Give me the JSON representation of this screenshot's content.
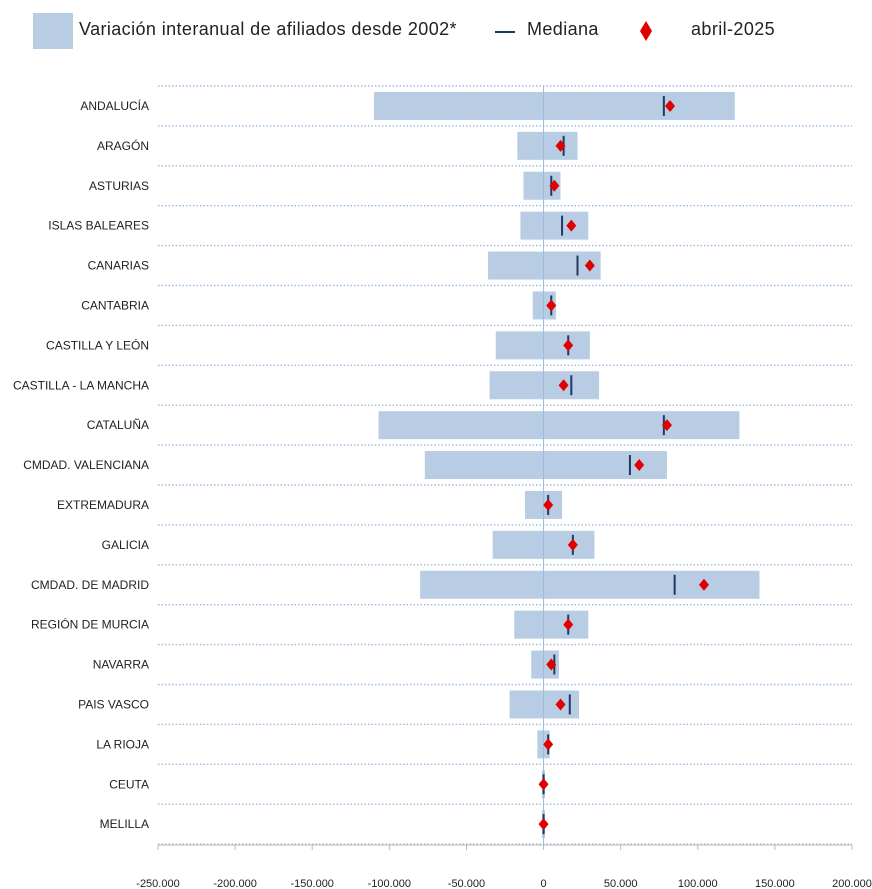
{
  "legend": {
    "range_label": "Variación interanual de afiliados desde 2002*",
    "median_label": "Mediana",
    "current_label": "abril-2025"
  },
  "colors": {
    "range_bar": "#b8cce4",
    "median": "#1f3864",
    "current": "#e00000",
    "gridline": "#9bbbe0",
    "zero_line": "#9bbbe0"
  },
  "chart_data": {
    "type": "bar",
    "orientation": "horizontal",
    "xlim": [
      -250000,
      200000
    ],
    "xticks": [
      -250000,
      -200000,
      -150000,
      -100000,
      -50000,
      0,
      50000,
      100000,
      150000,
      200000
    ],
    "xtick_labels": [
      "-250.000",
      "-200.000",
      "-150.000",
      "-100.000",
      "-50.000",
      "0",
      "50.000",
      "100.000",
      "150.000",
      "200.000"
    ],
    "categories": [
      "ANDALUCÍA",
      "ARAGÓN",
      "ASTURIAS",
      "ISLAS BALEARES",
      "CANARIAS",
      "CANTABRIA",
      "CASTILLA Y LEÓN",
      "CASTILLA - LA MANCHA",
      "CATALUÑA",
      "CMDAD. VALENCIANA",
      "EXTREMADURA",
      "GALICIA",
      "CMDAD. DE MADRID",
      "REGIÓN DE MURCIA",
      "NAVARRA",
      "PAIS VASCO",
      "LA RIOJA",
      "CEUTA",
      "MELILLA"
    ],
    "series": [
      {
        "name": "Variación interanual de afiliados desde 2002*",
        "kind": "range",
        "min": [
          -110000,
          -17000,
          -13000,
          -15000,
          -36000,
          -7000,
          -31000,
          -35000,
          -107000,
          -77000,
          -12000,
          -33000,
          -80000,
          -19000,
          -8000,
          -22000,
          -4000,
          -1000,
          -1000
        ],
        "max": [
          124000,
          22000,
          11000,
          29000,
          37000,
          8000,
          30000,
          36000,
          127000,
          80000,
          12000,
          33000,
          140000,
          29000,
          10000,
          23000,
          4000,
          1000,
          1000
        ]
      },
      {
        "name": "Mediana",
        "kind": "marker_line",
        "values": [
          78000,
          13000,
          5000,
          12000,
          22000,
          5000,
          16000,
          18000,
          78000,
          56000,
          3000,
          19000,
          85000,
          16000,
          7000,
          17000,
          3000,
          0,
          0
        ]
      },
      {
        "name": "abril-2025",
        "kind": "marker_diamond",
        "values": [
          82000,
          11000,
          7000,
          18000,
          30000,
          5000,
          16000,
          13000,
          80000,
          62000,
          3000,
          19000,
          104000,
          16000,
          5000,
          11000,
          3000,
          0,
          0
        ]
      }
    ]
  }
}
